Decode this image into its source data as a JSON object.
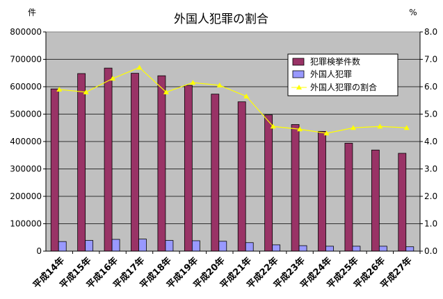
{
  "chart_data": {
    "type": "bar",
    "title": "外国人犯罪の割合",
    "y_left_unit": "件",
    "y_right_unit": "%",
    "categories": [
      "平成14年",
      "平成15年",
      "平成16年",
      "平成17年",
      "平成18年",
      "平成19年",
      "平成20年",
      "平成21年",
      "平成22年",
      "平成23年",
      "平成24年",
      "平成25年",
      "平成26年",
      "平成27年"
    ],
    "y_left_lim": [
      0,
      800000
    ],
    "y_left_ticks": [
      "0",
      "100000",
      "200000",
      "300000",
      "400000",
      "500000",
      "600000",
      "700000",
      "800000"
    ],
    "y_right_lim": [
      0,
      8
    ],
    "y_right_ticks": [
      "0.0",
      "1.0",
      "2.0",
      "3.0",
      "4.0",
      "5.0",
      "6.0",
      "7.0",
      "8.0"
    ],
    "grid": true,
    "legend_position": "top-right",
    "series": [
      {
        "name": "犯罪検挙件数",
        "type": "bar",
        "axis": "left",
        "color": "#993366",
        "values": [
          592000,
          648000,
          668000,
          649000,
          640000,
          605000,
          573000,
          545000,
          497000,
          462000,
          437000,
          394000,
          369000,
          357000
        ]
      },
      {
        "name": "外国人犯罪",
        "type": "bar",
        "axis": "left",
        "color": "#9999ff",
        "values": [
          35000,
          39000,
          43000,
          44000,
          39000,
          38000,
          36000,
          31000,
          23000,
          20000,
          18000,
          18000,
          18000,
          16000
        ]
      },
      {
        "name": "外国人犯罪の割合",
        "type": "line",
        "axis": "right",
        "color": "#ffff00",
        "values": [
          5.9,
          5.8,
          6.3,
          6.7,
          5.8,
          6.15,
          6.05,
          5.65,
          4.55,
          4.45,
          4.3,
          4.5,
          4.55,
          4.5
        ]
      }
    ]
  }
}
